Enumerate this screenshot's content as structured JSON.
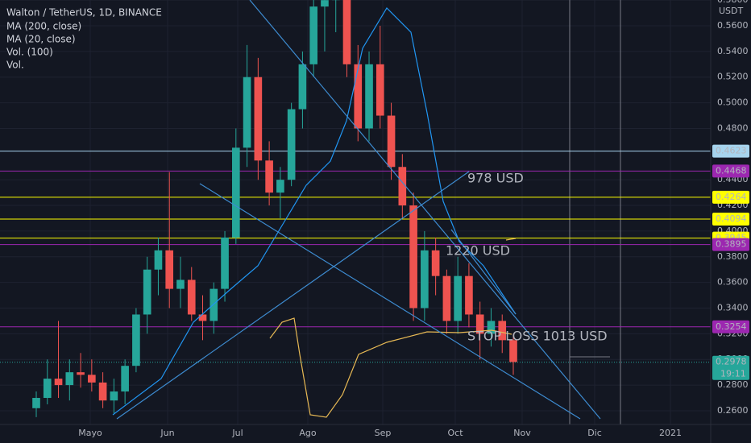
{
  "chart_data": {
    "type": "candlestick",
    "title": "Walton / TetherUS, 1D, BINANCE",
    "indicators": [
      "MA (200, close)",
      "MA (20, close)",
      "Vol. (100)",
      "Vol."
    ],
    "currency": "USDT",
    "countdown": "19:11",
    "ylim": [
      0.2493,
      0.5801
    ],
    "yticks": [
      {
        "value": 0.26,
        "label": "0.2600"
      },
      {
        "value": 0.28,
        "label": "0.2800"
      },
      {
        "value": 0.3,
        "label": "0.3000"
      },
      {
        "value": 0.32,
        "label": "0.3200"
      },
      {
        "value": 0.34,
        "label": "0.3400"
      },
      {
        "value": 0.36,
        "label": "0.3600"
      },
      {
        "value": 0.38,
        "label": "0.3800"
      },
      {
        "value": 0.4,
        "label": "0.4000"
      },
      {
        "value": 0.42,
        "label": "0.4200"
      },
      {
        "value": 0.44,
        "label": "0.4400"
      },
      {
        "value": 0.48,
        "label": "0.4800"
      },
      {
        "value": 0.5,
        "label": "0.5000"
      },
      {
        "value": 0.52,
        "label": "0.5200"
      },
      {
        "value": 0.54,
        "label": "0.5400"
      },
      {
        "value": 0.56,
        "label": "0.5600"
      },
      {
        "value": 0.58,
        "label": "0.5800"
      }
    ],
    "time_labels": [
      "Mayo",
      "Jun",
      "Jul",
      "Ago",
      "Sep",
      "Oct",
      "Nov",
      "Dic",
      "2021"
    ],
    "levels": [
      {
        "value": 0.4623,
        "color": "#a6d4ee"
      },
      {
        "value": 0.4468,
        "color": "#9c27b0"
      },
      {
        "value": 0.4264,
        "color": "#ffff00"
      },
      {
        "value": 0.4094,
        "color": "#ffff00"
      },
      {
        "value": 0.3945,
        "color": "#ffff00"
      },
      {
        "value": 0.3895,
        "color": "#9c27b0"
      },
      {
        "value": 0.3254,
        "color": "#9c27b0"
      }
    ],
    "last_price": 0.2978,
    "last_price_color": "#26a69a",
    "annotations": [
      "978 USD",
      "1220 USD",
      "STOP LOSS 1013 USD"
    ],
    "annotation_color": "#b03fc0",
    "up_color": "#26a69a",
    "down_color": "#ef5350",
    "candles": [
      [
        0.262,
        0.275,
        0.255,
        0.27
      ],
      [
        0.27,
        0.3,
        0.265,
        0.285
      ],
      [
        0.285,
        0.33,
        0.27,
        0.28
      ],
      [
        0.28,
        0.3,
        0.268,
        0.29
      ],
      [
        0.29,
        0.305,
        0.278,
        0.288
      ],
      [
        0.288,
        0.3,
        0.275,
        0.282
      ],
      [
        0.282,
        0.29,
        0.262,
        0.268
      ],
      [
        0.268,
        0.285,
        0.258,
        0.275
      ],
      [
        0.275,
        0.3,
        0.265,
        0.295
      ],
      [
        0.295,
        0.34,
        0.29,
        0.335
      ],
      [
        0.335,
        0.38,
        0.32,
        0.37
      ],
      [
        0.37,
        0.395,
        0.35,
        0.385
      ],
      [
        0.385,
        0.446,
        0.34,
        0.355
      ],
      [
        0.355,
        0.38,
        0.34,
        0.362
      ],
      [
        0.362,
        0.372,
        0.33,
        0.335
      ],
      [
        0.335,
        0.35,
        0.315,
        0.33
      ],
      [
        0.33,
        0.36,
        0.32,
        0.355
      ],
      [
        0.355,
        0.4,
        0.345,
        0.395
      ],
      [
        0.395,
        0.48,
        0.39,
        0.465
      ],
      [
        0.465,
        0.545,
        0.45,
        0.52
      ],
      [
        0.52,
        0.535,
        0.44,
        0.455
      ],
      [
        0.455,
        0.47,
        0.42,
        0.43
      ],
      [
        0.43,
        0.45,
        0.41,
        0.44
      ],
      [
        0.44,
        0.5,
        0.435,
        0.495
      ],
      [
        0.495,
        0.54,
        0.48,
        0.53
      ],
      [
        0.53,
        0.59,
        0.52,
        0.575
      ],
      [
        0.575,
        0.6,
        0.54,
        0.58
      ],
      [
        0.58,
        0.6,
        0.555,
        0.585
      ],
      [
        0.585,
        0.59,
        0.52,
        0.53
      ],
      [
        0.53,
        0.545,
        0.47,
        0.48
      ],
      [
        0.48,
        0.54,
        0.47,
        0.53
      ],
      [
        0.53,
        0.56,
        0.48,
        0.49
      ],
      [
        0.49,
        0.5,
        0.44,
        0.45
      ],
      [
        0.45,
        0.46,
        0.41,
        0.42
      ],
      [
        0.42,
        0.43,
        0.33,
        0.34
      ],
      [
        0.34,
        0.4,
        0.33,
        0.385
      ],
      [
        0.385,
        0.395,
        0.35,
        0.365
      ],
      [
        0.365,
        0.37,
        0.32,
        0.33
      ],
      [
        0.33,
        0.38,
        0.32,
        0.365
      ],
      [
        0.365,
        0.375,
        0.325,
        0.335
      ],
      [
        0.335,
        0.345,
        0.3,
        0.32
      ],
      [
        0.32,
        0.34,
        0.31,
        0.33
      ],
      [
        0.33,
        0.335,
        0.305,
        0.315
      ],
      [
        0.315,
        0.32,
        0.288,
        0.298
      ]
    ]
  }
}
